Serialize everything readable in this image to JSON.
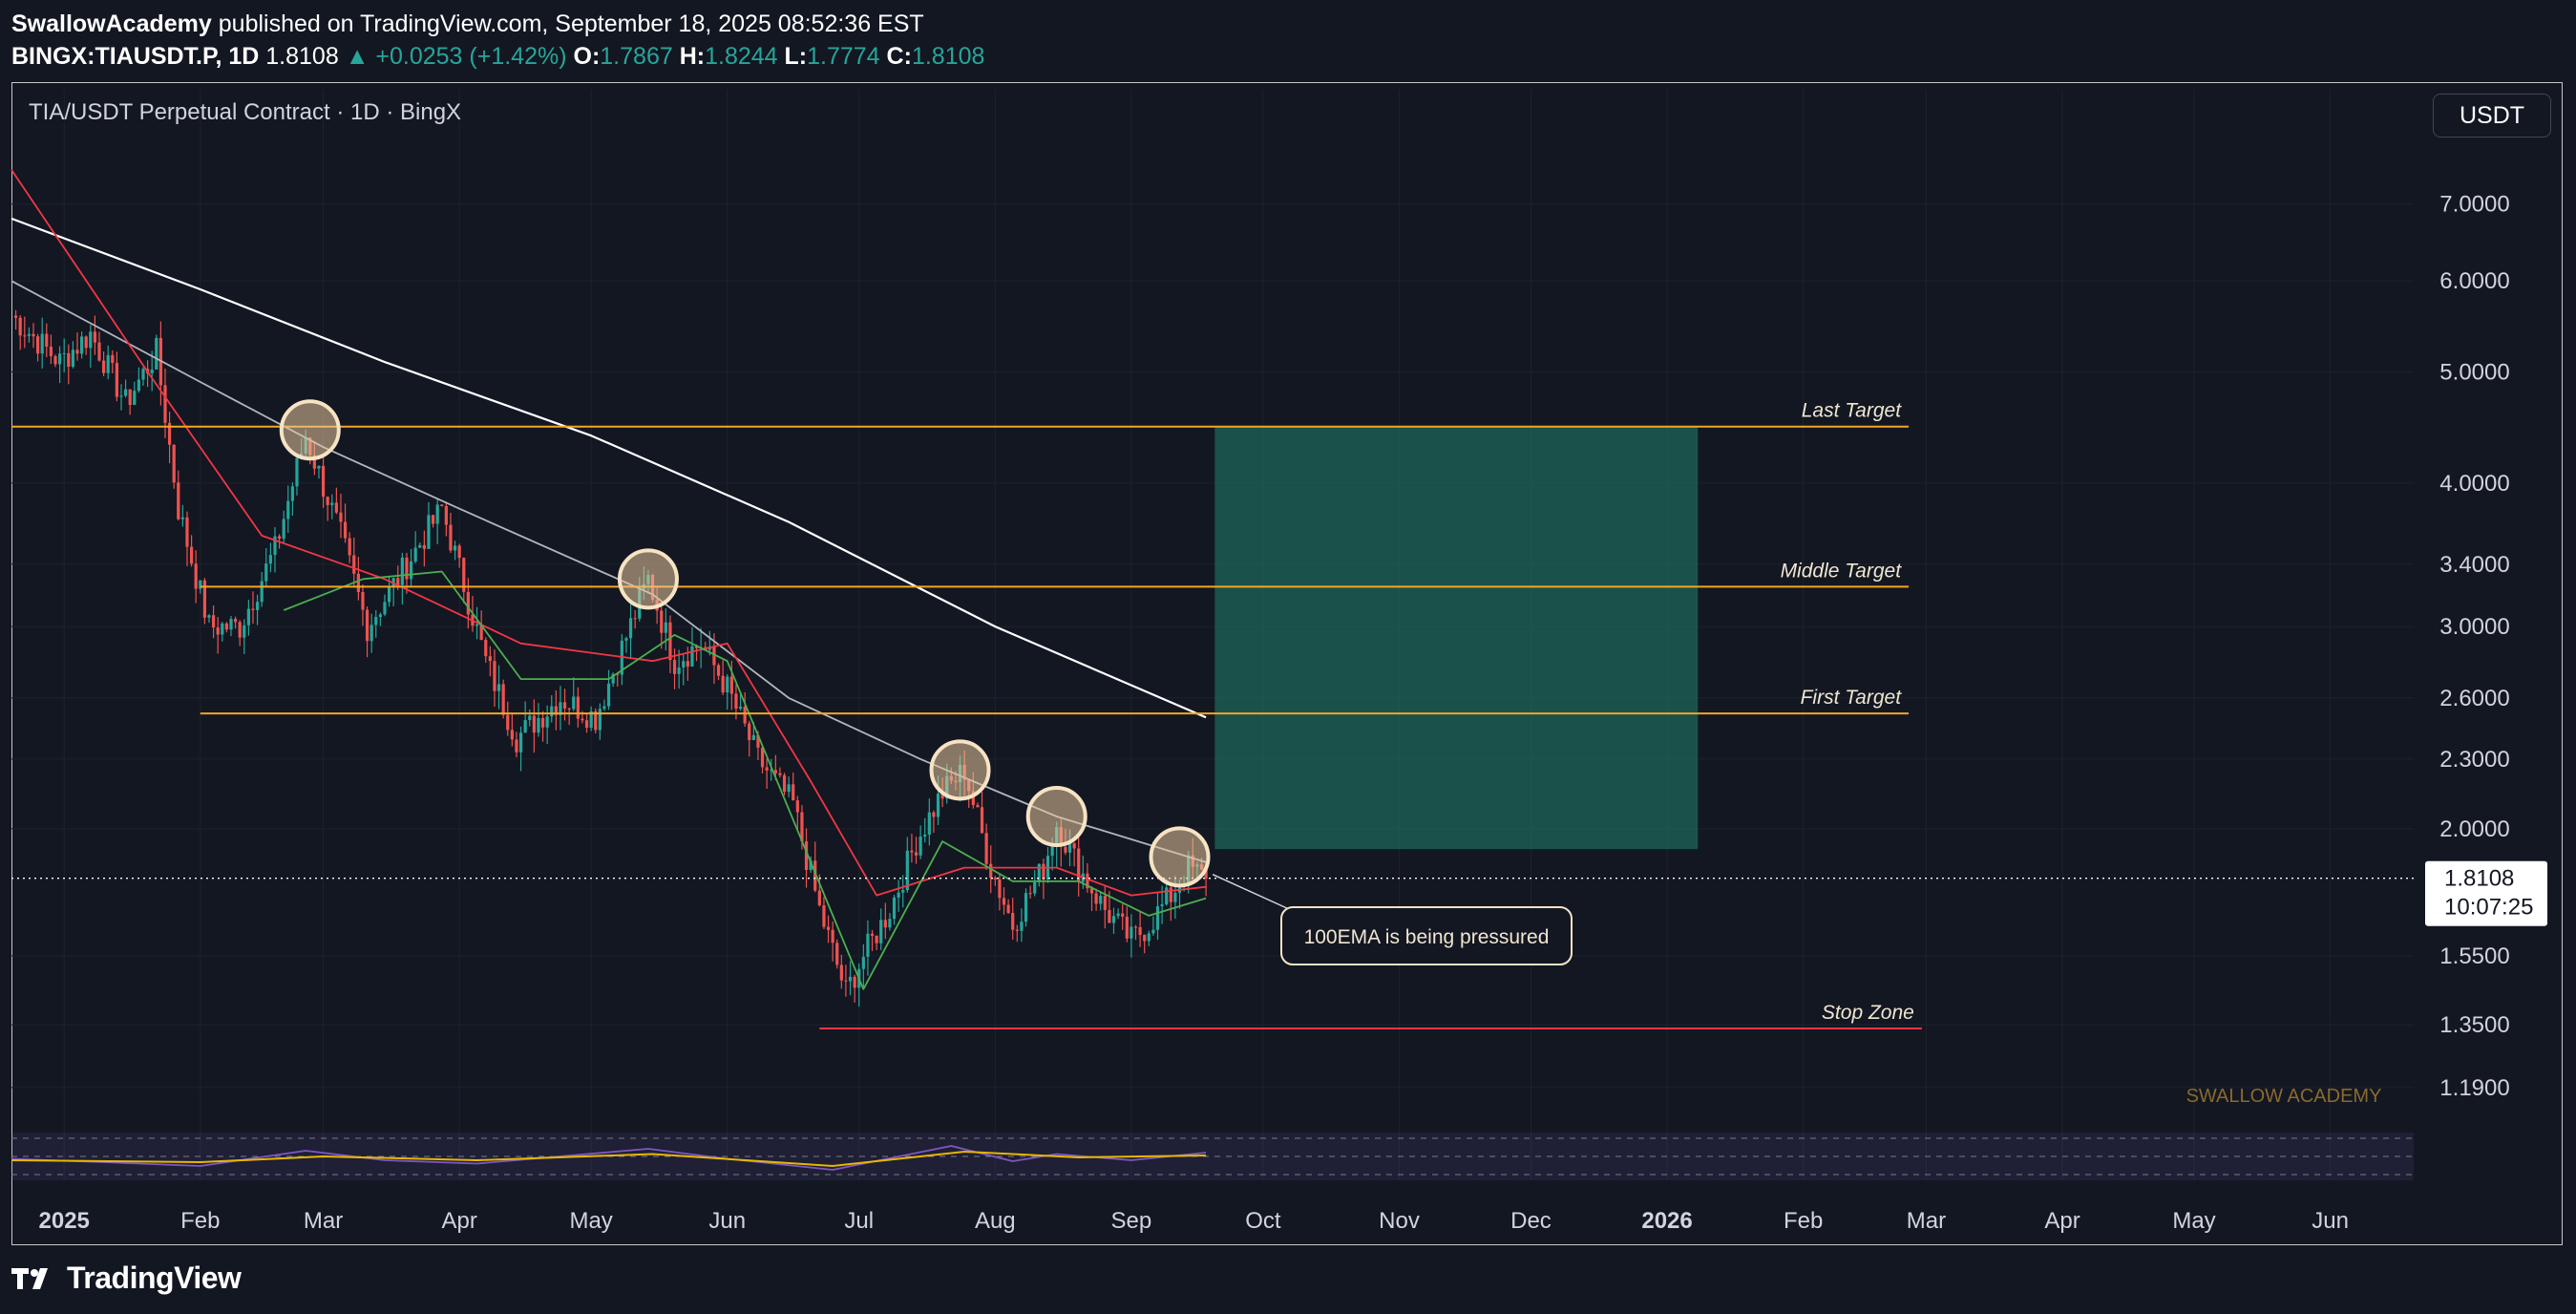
{
  "header": {
    "author": "SwallowAcademy",
    "published_text": "published on TradingView.com, September 18, 2025 08:52:36 EST",
    "symbol": "BINGX:TIAUSDT.P, 1D",
    "last": "1.8108",
    "change": "+0.0253 (+1.42%)",
    "o_label": "O:",
    "o": "1.7867",
    "h_label": "H:",
    "h": "1.8244",
    "l_label": "L:",
    "l": "1.7774",
    "c_label": "C:",
    "c": "1.8108"
  },
  "pane_title": "TIA/USDT Perpetual Contract · 1D · BingX",
  "currency_button": "USDT",
  "watermark": "SWALLOW ACADEMY",
  "footer_brand": "TradingView",
  "price_label": {
    "price": "1.8108",
    "countdown": "10:07:25"
  },
  "colors": {
    "background": "#131722",
    "up": "#26a69a",
    "down": "#ef5350",
    "target_line": "#f5a623",
    "stop_line": "#f23645",
    "ema_long": "#ffffff",
    "ema_mid": "#b2b5be",
    "ema_fast": "#f23645",
    "ema_short": "#4caf50",
    "target_zone": "#1f6b5c",
    "rsi": "#7e57c2",
    "rsi_ma": "#e6b800"
  },
  "chart_data": {
    "type": "candlestick",
    "scale": "log",
    "ylim": [
      1.1,
      8.0
    ],
    "xlim": [
      "2024-12-20",
      "2026-06-20"
    ],
    "y_ticks": [
      "7.0000",
      "6.0000",
      "5.0000",
      "4.0000",
      "3.4000",
      "3.0000",
      "2.6000",
      "2.3000",
      "2.0000",
      "1.5500",
      "1.3500",
      "1.1900"
    ],
    "x_ticks": [
      {
        "label": "2025",
        "date": "2025-01-01",
        "bold": true
      },
      {
        "label": "Feb",
        "date": "2025-02-01"
      },
      {
        "label": "Mar",
        "date": "2025-03-01"
      },
      {
        "label": "Apr",
        "date": "2025-04-01"
      },
      {
        "label": "May",
        "date": "2025-05-01"
      },
      {
        "label": "Jun",
        "date": "2025-06-01"
      },
      {
        "label": "Jul",
        "date": "2025-07-01"
      },
      {
        "label": "Aug",
        "date": "2025-08-01"
      },
      {
        "label": "Sep",
        "date": "2025-09-01"
      },
      {
        "label": "Oct",
        "date": "2025-10-01"
      },
      {
        "label": "Nov",
        "date": "2025-11-01"
      },
      {
        "label": "Dec",
        "date": "2025-12-01"
      },
      {
        "label": "2026",
        "date": "2026-01-01",
        "bold": true
      },
      {
        "label": "Feb",
        "date": "2026-02-01"
      },
      {
        "label": "Mar",
        "date": "2026-03-01"
      },
      {
        "label": "Apr",
        "date": "2026-04-01"
      },
      {
        "label": "May",
        "date": "2026-05-01"
      },
      {
        "label": "Jun",
        "date": "2026-06-01"
      }
    ],
    "price_path": [
      [
        "2024-12-20",
        5.6
      ],
      [
        "2024-12-31",
        5.1
      ],
      [
        "2025-01-07",
        5.4
      ],
      [
        "2025-01-15",
        4.7
      ],
      [
        "2025-01-22",
        5.2
      ],
      [
        "2025-01-27",
        3.8
      ],
      [
        "2025-02-03",
        3.0
      ],
      [
        "2025-02-10",
        3.0
      ],
      [
        "2025-02-18",
        3.5
      ],
      [
        "2025-02-25",
        4.4
      ],
      [
        "2025-03-05",
        3.6
      ],
      [
        "2025-03-11",
        3.0
      ],
      [
        "2025-03-20",
        3.4
      ],
      [
        "2025-03-28",
        3.8
      ],
      [
        "2025-04-07",
        2.8
      ],
      [
        "2025-04-14",
        2.4
      ],
      [
        "2025-04-24",
        2.6
      ],
      [
        "2025-05-02",
        2.5
      ],
      [
        "2025-05-14",
        3.3
      ],
      [
        "2025-05-20",
        2.8
      ],
      [
        "2025-05-26",
        2.9
      ],
      [
        "2025-06-01",
        2.65
      ],
      [
        "2025-06-08",
        2.3
      ],
      [
        "2025-06-16",
        2.1
      ],
      [
        "2025-06-22",
        1.7
      ],
      [
        "2025-06-28",
        1.44
      ],
      [
        "2025-07-02",
        1.55
      ],
      [
        "2025-07-08",
        1.7
      ],
      [
        "2025-07-14",
        1.95
      ],
      [
        "2025-07-20",
        2.15
      ],
      [
        "2025-07-25",
        2.25
      ],
      [
        "2025-07-31",
        1.85
      ],
      [
        "2025-08-05",
        1.65
      ],
      [
        "2025-08-12",
        1.85
      ],
      [
        "2025-08-15",
        2.02
      ],
      [
        "2025-08-20",
        1.85
      ],
      [
        "2025-08-26",
        1.7
      ],
      [
        "2025-09-01",
        1.6
      ],
      [
        "2025-09-05",
        1.65
      ],
      [
        "2025-09-10",
        1.75
      ],
      [
        "2025-09-14",
        1.85
      ],
      [
        "2025-09-18",
        1.81
      ]
    ],
    "ema_long": [
      [
        "2024-12-20",
        6.8
      ],
      [
        "2025-02-01",
        5.9
      ],
      [
        "2025-03-15",
        5.1
      ],
      [
        "2025-05-01",
        4.4
      ],
      [
        "2025-06-15",
        3.7
      ],
      [
        "2025-08-01",
        3.0
      ],
      [
        "2025-09-18",
        2.5
      ]
    ],
    "ema_mid": [
      [
        "2024-12-20",
        6.0
      ],
      [
        "2025-02-01",
        4.9
      ],
      [
        "2025-03-01",
        4.3
      ],
      [
        "2025-04-01",
        3.8
      ],
      [
        "2025-05-15",
        3.2
      ],
      [
        "2025-06-15",
        2.6
      ],
      [
        "2025-07-15",
        2.3
      ],
      [
        "2025-08-15",
        2.05
      ],
      [
        "2025-09-18",
        1.87
      ]
    ],
    "ema_fast": [
      [
        "2024-12-20",
        7.5
      ],
      [
        "2025-01-20",
        5.0
      ],
      [
        "2025-02-15",
        3.6
      ],
      [
        "2025-03-15",
        3.3
      ],
      [
        "2025-04-15",
        2.9
      ],
      [
        "2025-05-15",
        2.8
      ],
      [
        "2025-06-01",
        2.9
      ],
      [
        "2025-06-20",
        2.2
      ],
      [
        "2025-07-05",
        1.75
      ],
      [
        "2025-07-25",
        1.85
      ],
      [
        "2025-08-15",
        1.85
      ],
      [
        "2025-09-01",
        1.75
      ],
      [
        "2025-09-18",
        1.78
      ]
    ],
    "ema_short": [
      [
        "2025-02-20",
        3.1
      ],
      [
        "2025-03-10",
        3.3
      ],
      [
        "2025-03-28",
        3.35
      ],
      [
        "2025-04-15",
        2.7
      ],
      [
        "2025-05-05",
        2.7
      ],
      [
        "2025-05-20",
        2.95
      ],
      [
        "2025-06-01",
        2.8
      ],
      [
        "2025-07-02",
        1.45
      ],
      [
        "2025-07-20",
        1.95
      ],
      [
        "2025-08-05",
        1.8
      ],
      [
        "2025-08-20",
        1.8
      ],
      [
        "2025-09-05",
        1.68
      ],
      [
        "2025-09-18",
        1.74
      ]
    ],
    "levels": [
      {
        "label": "Last Target",
        "price": 4.48,
        "from": "2024-12-20",
        "to": "2026-02-25"
      },
      {
        "label": "Middle Target",
        "price": 3.25,
        "from": "2025-02-01",
        "to": "2026-02-25"
      },
      {
        "label": "First Target",
        "price": 2.52,
        "from": "2025-02-01",
        "to": "2026-02-25"
      },
      {
        "label": "Stop Zone",
        "price": 1.34,
        "from": "2025-06-22",
        "to": "2026-02-28"
      }
    ],
    "target_zone": {
      "from": "2025-09-20",
      "to": "2026-01-08",
      "top": 4.48,
      "bottom": 1.92
    },
    "markers": [
      {
        "date": "2025-02-26",
        "price": 4.45
      },
      {
        "date": "2025-05-14",
        "price": 3.3
      },
      {
        "date": "2025-07-24",
        "price": 2.25
      },
      {
        "date": "2025-08-15",
        "price": 2.05
      },
      {
        "date": "2025-09-12",
        "price": 1.89
      }
    ],
    "annotation": {
      "text": "100EMA is being pressured",
      "date": "2025-09-13",
      "price": 1.86
    },
    "rsi": [
      [
        "2024-12-20",
        45
      ],
      [
        "2025-01-10",
        38
      ],
      [
        "2025-02-01",
        30
      ],
      [
        "2025-02-25",
        62
      ],
      [
        "2025-03-15",
        42
      ],
      [
        "2025-04-05",
        35
      ],
      [
        "2025-05-14",
        66
      ],
      [
        "2025-06-01",
        45
      ],
      [
        "2025-06-25",
        22
      ],
      [
        "2025-07-22",
        72
      ],
      [
        "2025-08-05",
        40
      ],
      [
        "2025-08-15",
        55
      ],
      [
        "2025-09-01",
        42
      ],
      [
        "2025-09-18",
        58
      ]
    ],
    "rsi_ma": [
      [
        "2024-12-20",
        42
      ],
      [
        "2025-02-01",
        38
      ],
      [
        "2025-03-01",
        50
      ],
      [
        "2025-04-05",
        42
      ],
      [
        "2025-05-15",
        55
      ],
      [
        "2025-06-25",
        30
      ],
      [
        "2025-07-25",
        60
      ],
      [
        "2025-08-20",
        48
      ],
      [
        "2025-09-18",
        52
      ]
    ]
  }
}
